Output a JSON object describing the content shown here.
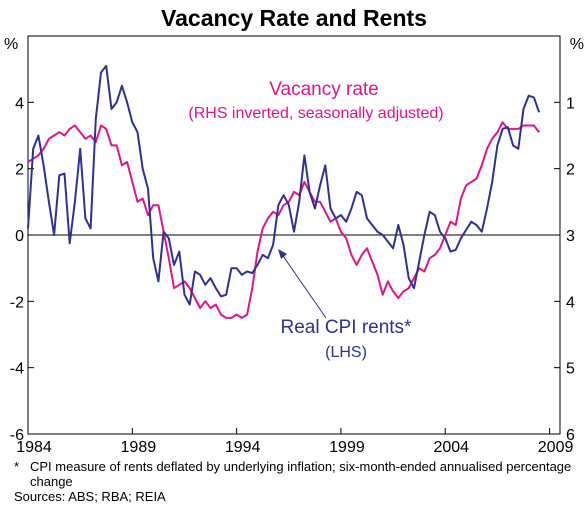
{
  "chart_data": {
    "type": "line",
    "title": "Vacancy Rate and Rents",
    "left_axis": {
      "unit": "%",
      "ylim": [
        -6,
        6
      ],
      "ticks": [
        6,
        4,
        2,
        0,
        -2,
        -4,
        -6
      ],
      "tick_labels": [
        "",
        "4",
        "2",
        "0",
        "-2",
        "-4",
        "-6"
      ]
    },
    "right_axis": {
      "unit": "%",
      "inverted": true,
      "ylim": [
        0,
        6
      ],
      "ticks": [
        1,
        2,
        3,
        4,
        5,
        6
      ],
      "tick_labels": [
        "1",
        "2",
        "3",
        "4",
        "5",
        "6"
      ]
    },
    "x_axis": {
      "xlim": [
        1984,
        2009.5
      ],
      "ticks": [
        1984,
        1989,
        1994,
        1999,
        2004,
        2009
      ],
      "tick_labels": [
        "1984",
        "1989",
        "1994",
        "1999",
        "2004",
        "2009"
      ]
    },
    "grid": "zero line only",
    "series": [
      {
        "name": "Real CPI rents*",
        "sublabel": "(LHS)",
        "axis": "left",
        "color": "#2e3192",
        "points": [
          [
            1984.0,
            0.2
          ],
          [
            1984.25,
            2.6
          ],
          [
            1984.5,
            3.0
          ],
          [
            1984.75,
            2.1
          ],
          [
            1985.0,
            1.0
          ],
          [
            1985.25,
            0.0
          ],
          [
            1985.5,
            1.8
          ],
          [
            1985.75,
            1.85
          ],
          [
            1986.0,
            -0.25
          ],
          [
            1986.25,
            1.0
          ],
          [
            1986.5,
            2.6
          ],
          [
            1986.75,
            0.5
          ],
          [
            1987.0,
            0.2
          ],
          [
            1987.25,
            3.5
          ],
          [
            1987.5,
            4.9
          ],
          [
            1987.75,
            5.1
          ],
          [
            1988.0,
            3.8
          ],
          [
            1988.25,
            4.0
          ],
          [
            1988.5,
            4.5
          ],
          [
            1988.75,
            4.0
          ],
          [
            1989.0,
            3.4
          ],
          [
            1989.25,
            3.1
          ],
          [
            1989.5,
            2.0
          ],
          [
            1989.75,
            1.4
          ],
          [
            1990.0,
            -0.7
          ],
          [
            1990.25,
            -1.4
          ],
          [
            1990.5,
            0.1
          ],
          [
            1990.75,
            -0.1
          ],
          [
            1991.0,
            -0.9
          ],
          [
            1991.25,
            -0.5
          ],
          [
            1991.5,
            -1.8
          ],
          [
            1991.75,
            -2.1
          ],
          [
            1992.0,
            -1.1
          ],
          [
            1992.25,
            -1.2
          ],
          [
            1992.5,
            -1.5
          ],
          [
            1992.75,
            -1.3
          ],
          [
            1993.0,
            -1.6
          ],
          [
            1993.25,
            -1.85
          ],
          [
            1993.5,
            -1.8
          ],
          [
            1993.75,
            -1.0
          ],
          [
            1994.0,
            -1.0
          ],
          [
            1994.25,
            -1.2
          ],
          [
            1994.5,
            -1.1
          ],
          [
            1994.75,
            -1.15
          ],
          [
            1995.0,
            -0.9
          ],
          [
            1995.25,
            -0.6
          ],
          [
            1995.5,
            -0.7
          ],
          [
            1995.75,
            -0.3
          ],
          [
            1996.0,
            0.9
          ],
          [
            1996.25,
            1.2
          ],
          [
            1996.5,
            0.9
          ],
          [
            1996.75,
            0.1
          ],
          [
            1997.0,
            1.0
          ],
          [
            1997.25,
            2.4
          ],
          [
            1997.5,
            1.3
          ],
          [
            1997.75,
            0.8
          ],
          [
            1998.0,
            1.5
          ],
          [
            1998.25,
            2.1
          ],
          [
            1998.5,
            0.8
          ],
          [
            1998.75,
            0.5
          ],
          [
            1999.0,
            0.6
          ],
          [
            1999.25,
            0.4
          ],
          [
            1999.5,
            0.8
          ],
          [
            1999.75,
            1.3
          ],
          [
            2000.0,
            1.2
          ],
          [
            2000.25,
            0.5
          ],
          [
            2000.5,
            0.3
          ],
          [
            2000.75,
            0.1
          ],
          [
            2001.0,
            0.0
          ],
          [
            2001.25,
            -0.2
          ],
          [
            2001.5,
            -0.4
          ],
          [
            2001.75,
            0.3
          ],
          [
            2002.0,
            -0.3
          ],
          [
            2002.25,
            -1.3
          ],
          [
            2002.5,
            -1.6
          ],
          [
            2002.75,
            -0.8
          ],
          [
            2003.0,
            0.0
          ],
          [
            2003.25,
            0.7
          ],
          [
            2003.5,
            0.6
          ],
          [
            2003.75,
            0.1
          ],
          [
            2004.0,
            -0.1
          ],
          [
            2004.25,
            -0.5
          ],
          [
            2004.5,
            -0.45
          ],
          [
            2004.75,
            -0.1
          ],
          [
            2005.0,
            0.15
          ],
          [
            2005.25,
            0.4
          ],
          [
            2005.5,
            0.3
          ],
          [
            2005.75,
            0.1
          ],
          [
            2006.0,
            0.8
          ],
          [
            2006.25,
            1.6
          ],
          [
            2006.5,
            2.7
          ],
          [
            2006.75,
            3.2
          ],
          [
            2007.0,
            3.25
          ],
          [
            2007.25,
            2.7
          ],
          [
            2007.5,
            2.6
          ],
          [
            2007.75,
            3.8
          ],
          [
            2008.0,
            4.2
          ],
          [
            2008.25,
            4.15
          ],
          [
            2008.5,
            3.7
          ]
        ]
      },
      {
        "name": "Vacancy rate",
        "sublabel": "(RHS inverted, seasonally adjusted)",
        "axis": "right",
        "color": "#e0148c",
        "points": [
          [
            1984.0,
            1.9
          ],
          [
            1984.25,
            1.85
          ],
          [
            1984.5,
            1.8
          ],
          [
            1984.75,
            1.7
          ],
          [
            1985.0,
            1.55
          ],
          [
            1985.25,
            1.5
          ],
          [
            1985.5,
            1.45
          ],
          [
            1985.75,
            1.5
          ],
          [
            1986.0,
            1.4
          ],
          [
            1986.25,
            1.35
          ],
          [
            1986.5,
            1.45
          ],
          [
            1986.75,
            1.55
          ],
          [
            1987.0,
            1.5
          ],
          [
            1987.25,
            1.6
          ],
          [
            1987.5,
            1.35
          ],
          [
            1987.75,
            1.4
          ],
          [
            1988.0,
            1.65
          ],
          [
            1988.25,
            1.65
          ],
          [
            1988.5,
            1.95
          ],
          [
            1988.75,
            1.9
          ],
          [
            1989.0,
            2.2
          ],
          [
            1989.25,
            2.5
          ],
          [
            1989.5,
            2.45
          ],
          [
            1989.75,
            2.7
          ],
          [
            1990.0,
            2.55
          ],
          [
            1990.25,
            2.55
          ],
          [
            1990.5,
            2.95
          ],
          [
            1990.75,
            3.35
          ],
          [
            1991.0,
            3.8
          ],
          [
            1991.25,
            3.75
          ],
          [
            1991.5,
            3.7
          ],
          [
            1991.75,
            3.8
          ],
          [
            1992.0,
            3.95
          ],
          [
            1992.25,
            4.1
          ],
          [
            1992.5,
            4.0
          ],
          [
            1992.75,
            4.1
          ],
          [
            1993.0,
            4.05
          ],
          [
            1993.25,
            4.2
          ],
          [
            1993.5,
            4.25
          ],
          [
            1993.75,
            4.25
          ],
          [
            1994.0,
            4.2
          ],
          [
            1994.25,
            4.25
          ],
          [
            1994.5,
            4.2
          ],
          [
            1994.75,
            3.8
          ],
          [
            1995.0,
            3.25
          ],
          [
            1995.25,
            2.9
          ],
          [
            1995.5,
            2.75
          ],
          [
            1995.75,
            2.65
          ],
          [
            1996.0,
            2.7
          ],
          [
            1996.25,
            2.55
          ],
          [
            1996.5,
            2.5
          ],
          [
            1996.75,
            2.35
          ],
          [
            1997.0,
            2.4
          ],
          [
            1997.25,
            2.2
          ],
          [
            1997.5,
            2.35
          ],
          [
            1997.75,
            2.5
          ],
          [
            1998.0,
            2.5
          ],
          [
            1998.25,
            2.65
          ],
          [
            1998.5,
            2.8
          ],
          [
            1998.75,
            2.75
          ],
          [
            1999.0,
            2.95
          ],
          [
            1999.25,
            3.05
          ],
          [
            1999.5,
            3.3
          ],
          [
            1999.75,
            3.45
          ],
          [
            2000.0,
            3.3
          ],
          [
            2000.25,
            3.2
          ],
          [
            2000.5,
            3.4
          ],
          [
            2000.75,
            3.6
          ],
          [
            2001.0,
            3.9
          ],
          [
            2001.25,
            3.7
          ],
          [
            2001.5,
            3.85
          ],
          [
            2001.75,
            3.95
          ],
          [
            2002.0,
            3.85
          ],
          [
            2002.25,
            3.8
          ],
          [
            2002.5,
            3.65
          ],
          [
            2002.75,
            3.5
          ],
          [
            2003.0,
            3.55
          ],
          [
            2003.25,
            3.35
          ],
          [
            2003.5,
            3.3
          ],
          [
            2003.75,
            3.2
          ],
          [
            2004.0,
            3.0
          ],
          [
            2004.25,
            2.8
          ],
          [
            2004.5,
            2.85
          ],
          [
            2004.75,
            2.45
          ],
          [
            2005.0,
            2.25
          ],
          [
            2005.25,
            2.2
          ],
          [
            2005.5,
            2.15
          ],
          [
            2005.75,
            1.95
          ],
          [
            2006.0,
            1.7
          ],
          [
            2006.25,
            1.55
          ],
          [
            2006.5,
            1.45
          ],
          [
            2006.75,
            1.3
          ],
          [
            2007.0,
            1.4
          ],
          [
            2007.25,
            1.4
          ],
          [
            2007.5,
            1.4
          ],
          [
            2007.75,
            1.35
          ],
          [
            2008.0,
            1.35
          ],
          [
            2008.25,
            1.35
          ],
          [
            2008.5,
            1.45
          ]
        ]
      }
    ],
    "annotations": [
      {
        "text": "Real CPI rents*",
        "series": "Real CPI rents*"
      },
      {
        "text": "(LHS)",
        "series": "Real CPI rents*"
      },
      {
        "text": "Vacancy rate",
        "series": "Vacancy rate"
      },
      {
        "text": "(RHS inverted, seasonally adjusted)",
        "series": "Vacancy rate"
      }
    ]
  },
  "footnote": {
    "marker": "*",
    "text": "CPI measure of rents deflated by underlying inflation; six-month-ended annualised percentage change"
  },
  "sources": "Sources: ABS; RBA; REIA",
  "colors": {
    "rents": "#2e3192",
    "vacancy": "#e0148c",
    "axis": "#000000"
  }
}
